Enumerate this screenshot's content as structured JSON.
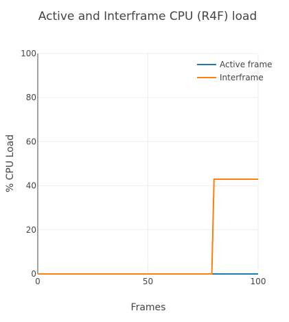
{
  "chart_data": {
    "type": "line",
    "title": "Active and Interframe CPU (R4F) load",
    "xlabel": "Frames",
    "ylabel": "% CPU Load",
    "xlim": [
      0,
      100
    ],
    "ylim": [
      0,
      100
    ],
    "xticks": [
      0,
      50,
      100
    ],
    "yticks": [
      0,
      20,
      40,
      60,
      80,
      100
    ],
    "grid": true,
    "legend_position": "top-right",
    "series": [
      {
        "name": "Active frame",
        "color": "#1f77b4",
        "x": [
          0,
          79,
          80,
          100
        ],
        "y": [
          0,
          0,
          0,
          0
        ]
      },
      {
        "name": "Interframe",
        "color": "#ff7f0e",
        "x": [
          0,
          79,
          80,
          100
        ],
        "y": [
          0,
          0,
          43,
          43
        ]
      }
    ]
  }
}
